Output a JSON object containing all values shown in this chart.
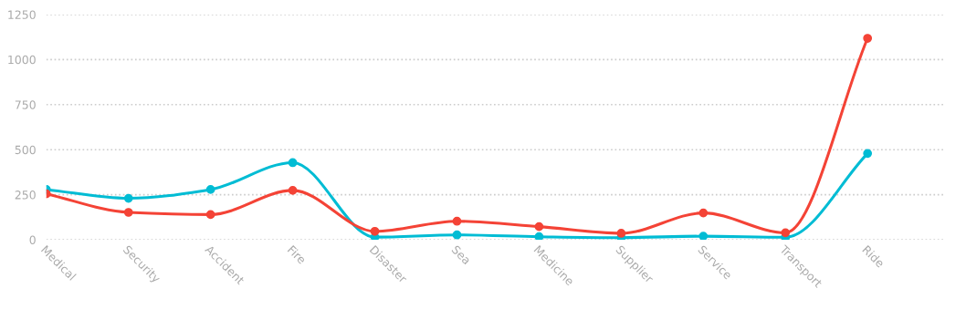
{
  "chart_data": {
    "type": "line",
    "categories": [
      "Medical",
      "Security",
      "Accident",
      "Fire",
      "Disaster",
      "Sea",
      "Medicine",
      "Supplier",
      "Service",
      "Transport",
      "Ride"
    ],
    "series": [
      {
        "color": "#00bcd4",
        "values": [
          279,
          230,
          279,
          428,
          15,
          27,
          17,
          12,
          20,
          14,
          479
        ]
      },
      {
        "color": "#f44336",
        "values": [
          255,
          152,
          140,
          274,
          47,
          103,
          73,
          36,
          149,
          39,
          1118
        ]
      }
    ],
    "ylim": [
      0,
      1250
    ],
    "yticks": [
      0,
      250,
      500,
      750,
      1000,
      1250
    ],
    "grid": "y",
    "marker": "circle",
    "line_style": "solid"
  }
}
